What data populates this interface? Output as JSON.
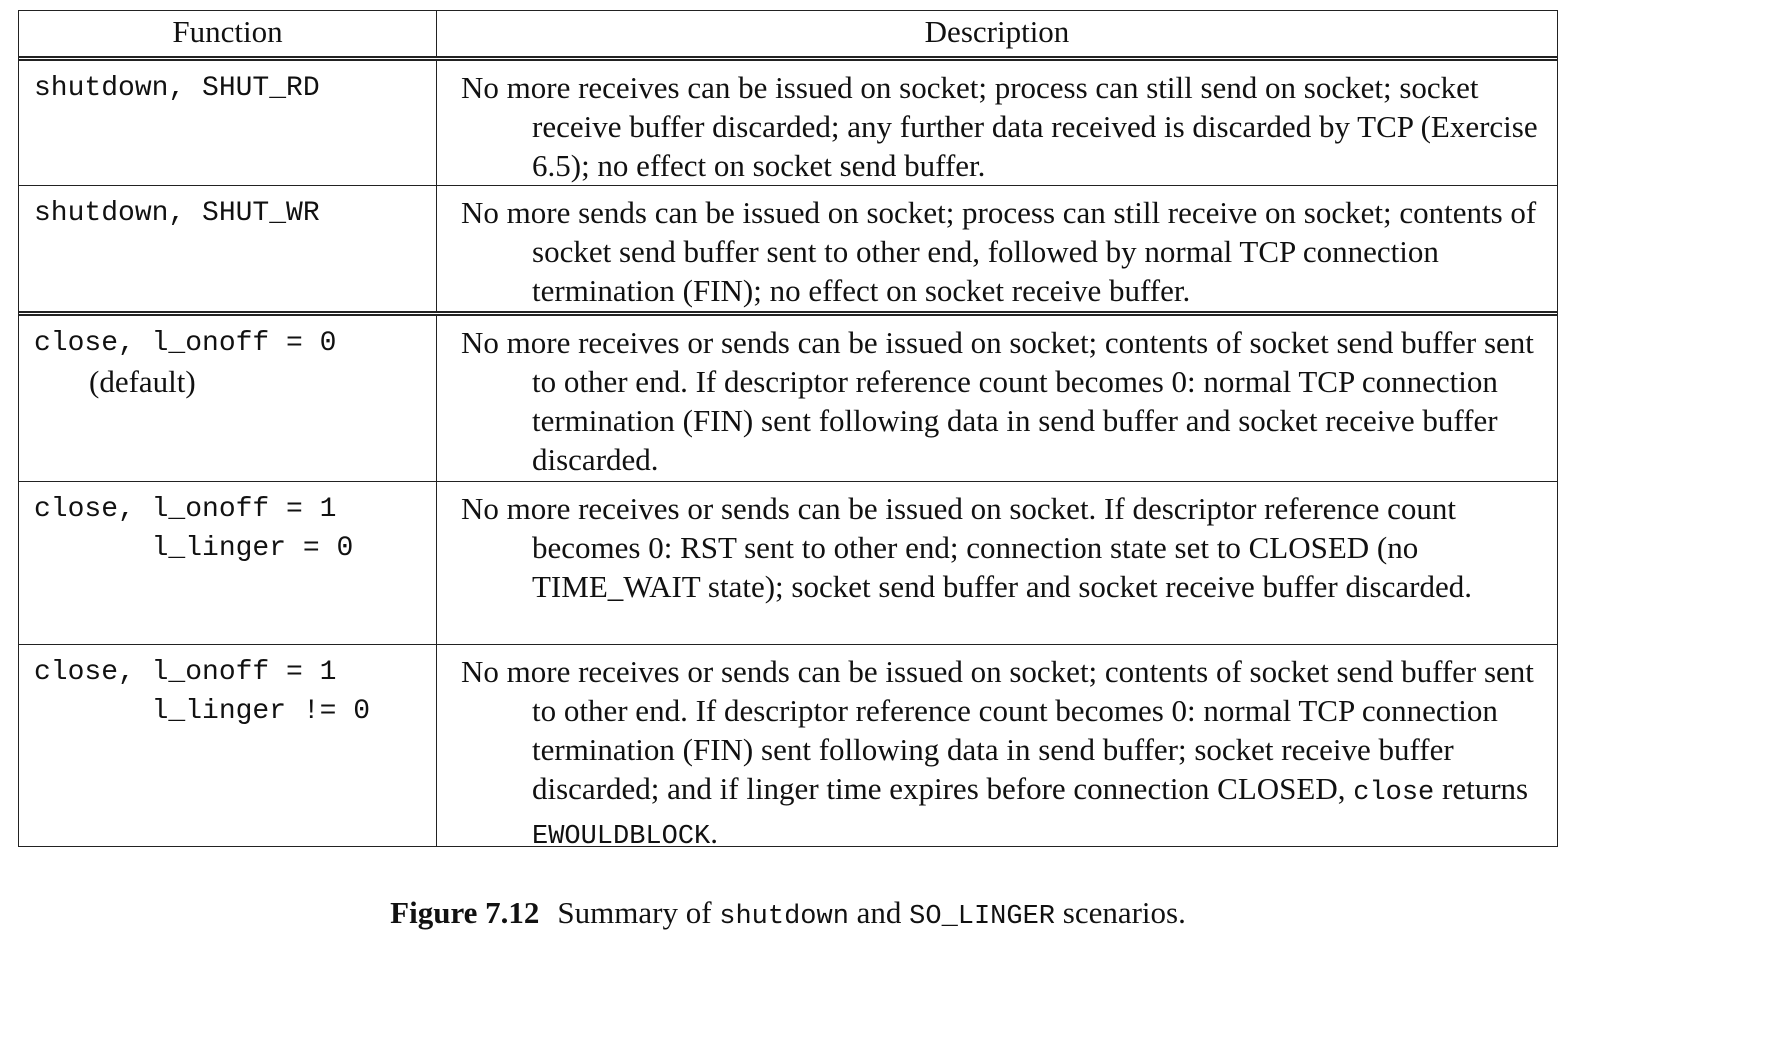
{
  "table": {
    "headers": {
      "function": "Function",
      "description": "Description"
    },
    "rows": [
      {
        "function": "shutdown, SHUT_RD",
        "description": [
          "No more receives can be issued on socket; process can still send on socket; socket receive buffer discarded; any further data received is discarded by TCP (Exercise 6.5); no effect on socket send buffer."
        ]
      },
      {
        "function": "shutdown, SHUT_WR",
        "description": [
          "No more sends can be issued on socket; process can still receive on socket; contents of socket send buffer sent to other end, followed by normal TCP connection termination (FIN); no effect on socket receive buffer."
        ]
      },
      {
        "function": "close, l_onoff = 0",
        "function_note": "(default)",
        "description": [
          "No more receives or sends can be issued on socket; contents of socket send buffer sent to other end.  If descriptor reference count becomes 0: normal TCP connection termination (FIN) sent following data in send buffer and socket receive buffer discarded."
        ]
      },
      {
        "function": "close, l_onoff = 1",
        "function_line2": "       l_linger = 0",
        "description": [
          "No more receives or sends can be issued on socket.  If descriptor reference count becomes 0: RST sent to other end; connection state set to CLOSED (no TIME_WAIT state); socket send buffer and socket receive buffer discarded."
        ]
      },
      {
        "function": "close, l_onoff = 1",
        "function_line2": "       l_linger != 0",
        "description": [
          "No more receives or sends can be issued on socket; contents of socket send buffer sent to other end.  If descriptor reference count becomes 0: normal TCP connection termination (FIN) sent following data in send buffer; socket receive buffer discarded; and if linger time expires before connection CLOSED, ",
          "close",
          " returns ",
          "EWOULDBLOCK",
          "."
        ]
      }
    ]
  },
  "caption": {
    "figure": "Figure 7.12",
    "parts": [
      "Summary of ",
      "shutdown",
      " and ",
      "SO_LINGER",
      " scenarios."
    ]
  }
}
